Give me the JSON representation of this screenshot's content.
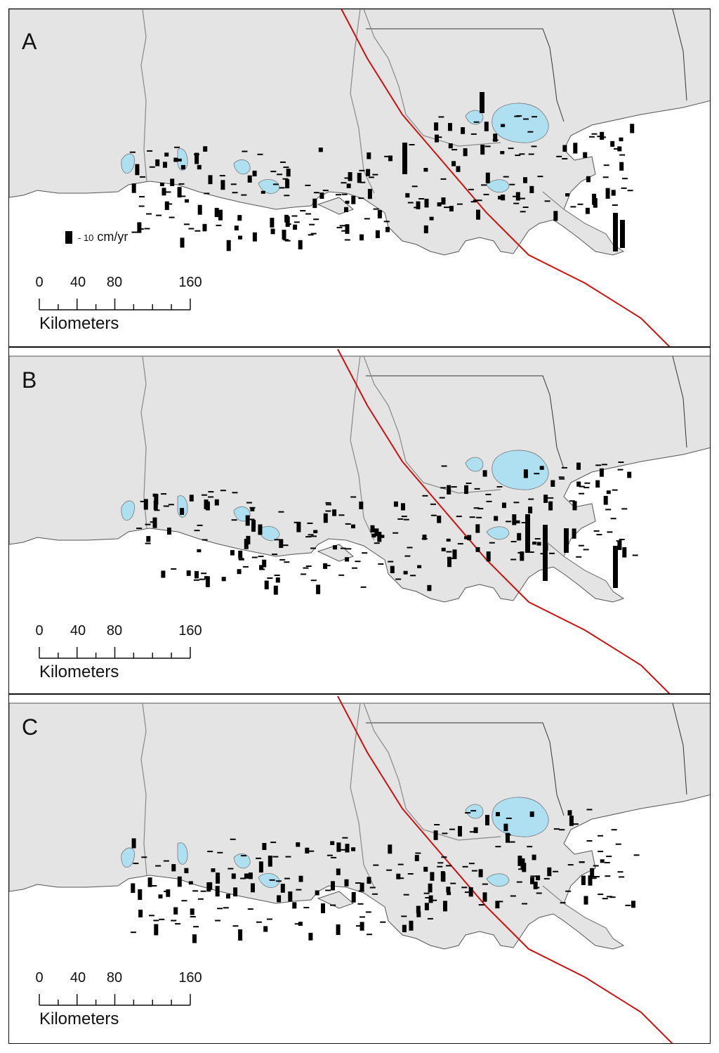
{
  "panels": [
    {
      "letter": "A"
    },
    {
      "letter": "B"
    },
    {
      "letter": "C"
    }
  ],
  "legend": {
    "prefix": "- 10",
    "unit": "cm/yr"
  },
  "scalebar": {
    "ticks": [
      "0",
      "40",
      "80",
      "160"
    ],
    "unit": "Kilometers"
  },
  "colors": {
    "land": "#e4e4e4",
    "water": "#aee0f2",
    "track": "#cc1111",
    "bars": "#000000",
    "boundary": "#555555"
  }
}
